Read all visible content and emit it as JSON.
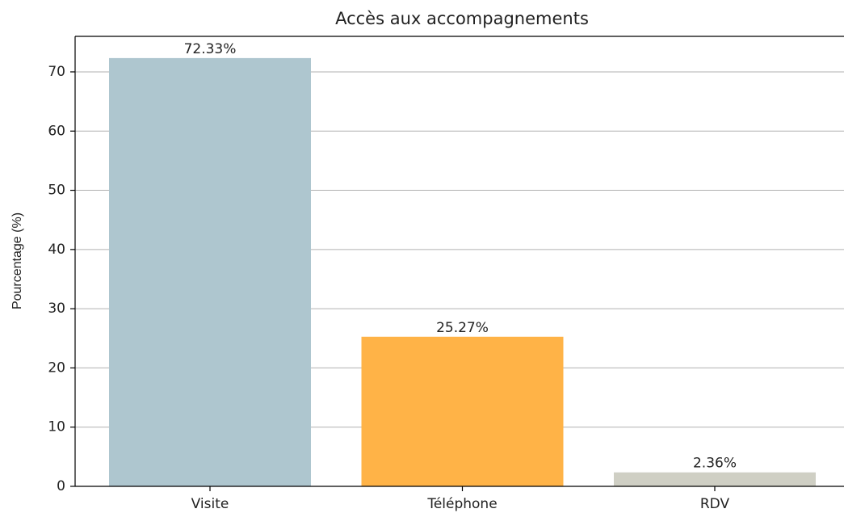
{
  "chart_data": {
    "type": "bar",
    "title": "Accès aux accompagnements",
    "ylabel": "Pourcentage (%)",
    "categories": [
      "Visite",
      "Téléphone",
      "RDV"
    ],
    "values": [
      72.33,
      25.27,
      2.36
    ],
    "value_labels": [
      "72.33%",
      "25.27%",
      "2.36%"
    ],
    "colors": [
      "#aec6cf",
      "#ffb347",
      "#cfcfc4"
    ],
    "ylim": [
      0,
      76
    ],
    "yticks": [
      0,
      10,
      20,
      30,
      40,
      50,
      60,
      70
    ],
    "grid": true
  }
}
